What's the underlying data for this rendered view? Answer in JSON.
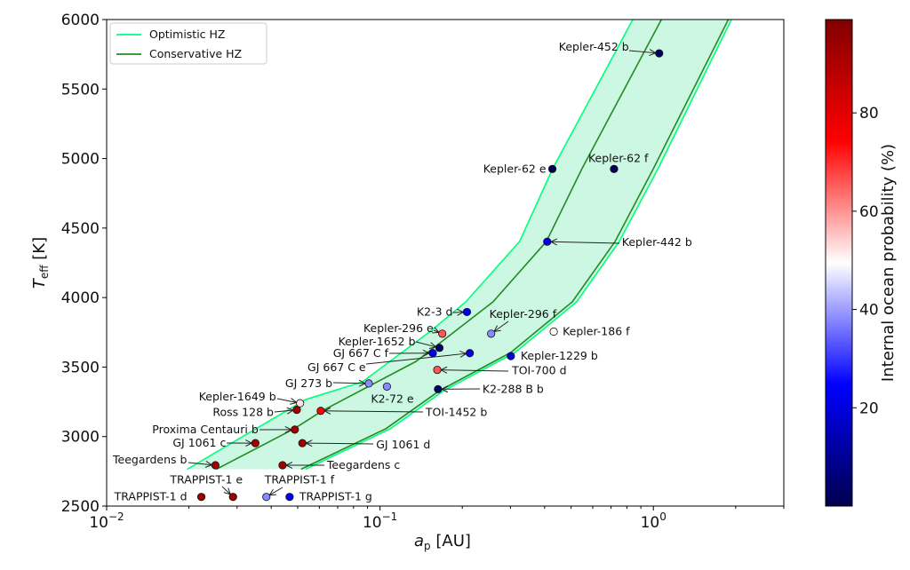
{
  "chart_data": {
    "type": "scatter",
    "xlabel": "a_p [AU]",
    "xlabel_main": "a",
    "xlabel_sub": "p",
    "xlabel_unit": " [AU]",
    "ylabel_main": "T",
    "ylabel_sub": "eff",
    "ylabel_unit": " [K]",
    "xscale": "log",
    "xlim": [
      0.01,
      3.0
    ],
    "ylim": [
      2500,
      6000
    ],
    "xticks": [
      0.01,
      0.1,
      1
    ],
    "xtick_labels": [
      {
        "base": "10",
        "exp": "−2"
      },
      {
        "base": "10",
        "exp": "−1"
      },
      {
        "base": "10",
        "exp": "0"
      }
    ],
    "yticks": [
      2500,
      3000,
      3500,
      4000,
      4500,
      5000,
      5500,
      6000
    ],
    "ytick_labels": [
      "2500",
      "3000",
      "3500",
      "4000",
      "4500",
      "5000",
      "5500",
      "6000"
    ],
    "grid": false,
    "legend": {
      "placement": "top-left",
      "entries": [
        {
          "label": "Optimistic HZ",
          "color": "#00ff7f"
        },
        {
          "label": "Conservative HZ",
          "color": "#228b22"
        }
      ]
    },
    "hz_fill_color": "#ccf7e2",
    "hz_optimistic_inner": [
      [
        0.0197,
        2765
      ],
      [
        0.0534,
        3266
      ],
      [
        0.0863,
        3394
      ],
      [
        0.153,
        3758
      ],
      [
        0.206,
        3969
      ],
      [
        0.324,
        4403
      ],
      [
        0.428,
        4927
      ],
      [
        0.841,
        6000
      ]
    ],
    "hz_conservative_inner": [
      [
        0.0252,
        2765
      ],
      [
        0.0485,
        3056
      ],
      [
        0.0621,
        3190
      ],
      [
        0.1356,
        3541
      ],
      [
        0.259,
        3969
      ],
      [
        0.406,
        4403
      ],
      [
        0.548,
        4927
      ],
      [
        1.07,
        6000
      ]
    ],
    "hz_conservative_outer": [
      [
        0.0514,
        2765
      ],
      [
        0.105,
        3056
      ],
      [
        0.165,
        3330
      ],
      [
        0.301,
        3605
      ],
      [
        0.505,
        3969
      ],
      [
        0.724,
        4403
      ],
      [
        1.0,
        4927
      ],
      [
        1.88,
        6000
      ]
    ],
    "hz_optimistic_outer": [
      [
        0.0534,
        2765
      ],
      [
        0.109,
        3056
      ],
      [
        0.171,
        3330
      ],
      [
        0.312,
        3605
      ],
      [
        0.524,
        3969
      ],
      [
        0.75,
        4403
      ],
      [
        1.04,
        4927
      ],
      [
        1.93,
        6000
      ]
    ],
    "colorbar": {
      "label": "Internal ocean probability (%)",
      "colormap": "seismic",
      "range": [
        0,
        99
      ],
      "ticks": [
        20,
        40,
        60,
        80
      ],
      "tick_labels": [
        "20",
        "40",
        "60",
        "80"
      ]
    },
    "points": [
      {
        "name": "Kepler-452 b",
        "a": 1.05,
        "teff": 5757,
        "prob": 2
      },
      {
        "name": "Kepler-62 e",
        "a": 0.427,
        "teff": 4925,
        "prob": 2
      },
      {
        "name": "Kepler-62 f",
        "a": 0.718,
        "teff": 4925,
        "prob": 2
      },
      {
        "name": "Kepler-442 b",
        "a": 0.409,
        "teff": 4402,
        "prob": 22
      },
      {
        "name": "K2-3 d",
        "a": 0.208,
        "teff": 3896,
        "prob": 22
      },
      {
        "name": "Kepler-296 e",
        "a": 0.169,
        "teff": 3740,
        "prob": 66
      },
      {
        "name": "Kepler-296 f",
        "a": 0.255,
        "teff": 3740,
        "prob": 38
      },
      {
        "name": "Kepler-186 f",
        "a": 0.432,
        "teff": 3755,
        "prob": 50
      },
      {
        "name": "Kepler-1652 b",
        "a": 0.165,
        "teff": 3638,
        "prob": 4
      },
      {
        "name": "GJ 667 C f",
        "a": 0.156,
        "teff": 3600,
        "prob": 22
      },
      {
        "name": "GJ 667 C e",
        "a": 0.213,
        "teff": 3600,
        "prob": 22
      },
      {
        "name": "Kepler-1229 b",
        "a": 0.301,
        "teff": 3579,
        "prob": 22
      },
      {
        "name": "TOI-700 d",
        "a": 0.162,
        "teff": 3480,
        "prob": 66
      },
      {
        "name": "K2-288 B b",
        "a": 0.163,
        "teff": 3341,
        "prob": 4
      },
      {
        "name": "GJ 273 b",
        "a": 0.091,
        "teff": 3382,
        "prob": 38
      },
      {
        "name": "K2-72 e",
        "a": 0.106,
        "teff": 3360,
        "prob": 38
      },
      {
        "name": "Kepler-1649 b",
        "a": 0.051,
        "teff": 3240,
        "prob": 52
      },
      {
        "name": "Ross 128 b",
        "a": 0.0496,
        "teff": 3192,
        "prob": 93
      },
      {
        "name": "TOI-1452 b",
        "a": 0.0607,
        "teff": 3185,
        "prob": 74
      },
      {
        "name": "Proxima Centauri b",
        "a": 0.0488,
        "teff": 3050,
        "prob": 93
      },
      {
        "name": "GJ 1061 c",
        "a": 0.035,
        "teff": 2953,
        "prob": 93
      },
      {
        "name": "GJ 1061 d",
        "a": 0.052,
        "teff": 2953,
        "prob": 93
      },
      {
        "name": "Teegardens b",
        "a": 0.025,
        "teff": 2794,
        "prob": 93
      },
      {
        "name": "Teegardens c",
        "a": 0.044,
        "teff": 2794,
        "prob": 93
      },
      {
        "name": "TRAPPIST-1 d",
        "a": 0.0222,
        "teff": 2566,
        "prob": 93
      },
      {
        "name": "TRAPPIST-1 e",
        "a": 0.029,
        "teff": 2566,
        "prob": 93
      },
      {
        "name": "TRAPPIST-1 f",
        "a": 0.0384,
        "teff": 2566,
        "prob": 38
      },
      {
        "name": "TRAPPIST-1 g",
        "a": 0.0467,
        "teff": 2566,
        "prob": 22
      }
    ]
  }
}
